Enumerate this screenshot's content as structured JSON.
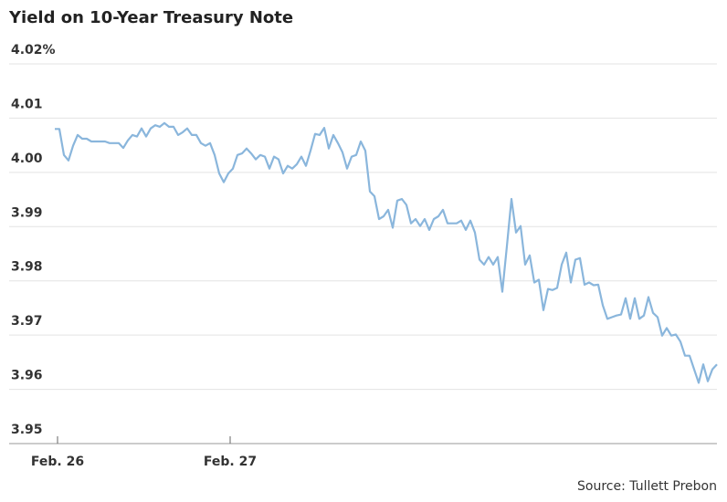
{
  "chart_data": {
    "type": "line",
    "title": "Yield on 10-Year Treasury Note",
    "source": "Source: Tullett Prebon",
    "series": [
      {
        "color": "#8ab6dc",
        "values": [
          4.008,
          4.008,
          4.0032,
          4.0022,
          4.0049,
          4.0069,
          4.0062,
          4.0062,
          4.0057,
          4.0057,
          4.0057,
          4.0057,
          4.0054,
          4.0054,
          4.0054,
          4.0045,
          4.0059,
          4.0069,
          4.0066,
          4.0081,
          4.0066,
          4.0081,
          4.0087,
          4.0084,
          4.0091,
          4.0084,
          4.0084,
          4.0069,
          4.0074,
          4.0081,
          4.0069,
          4.0069,
          4.0054,
          4.0049,
          4.0054,
          4.0032,
          3.9998,
          3.9982,
          3.9998,
          4.0007,
          4.0032,
          4.0035,
          4.0044,
          4.0035,
          4.0024,
          4.0032,
          4.0029,
          4.0007,
          4.0029,
          4.0024,
          3.9998,
          4.0012,
          4.0007,
          4.0015,
          4.0029,
          4.0012,
          4.004,
          4.0071,
          4.0069,
          4.0082,
          4.0044,
          4.0069,
          4.0054,
          4.0037,
          4.0007,
          4.0029,
          4.0032,
          4.0057,
          4.004,
          3.9965,
          3.9956,
          3.9914,
          3.9919,
          3.9931,
          3.9898,
          3.9948,
          3.9951,
          3.994,
          3.9906,
          3.9914,
          3.9901,
          3.9914,
          3.9894,
          3.9914,
          3.9919,
          3.9931,
          3.9906,
          3.9906,
          3.9906,
          3.9911,
          3.9894,
          3.9911,
          3.9889,
          3.9839,
          3.983,
          3.9844,
          3.983,
          3.9844,
          3.978,
          3.9864,
          3.9951,
          3.9889,
          3.9901,
          3.983,
          3.9847,
          3.9797,
          3.9802,
          3.9746,
          3.9785,
          3.9783,
          3.9787,
          3.983,
          3.9852,
          3.9797,
          3.9839,
          3.9842,
          3.9793,
          3.9797,
          3.9792,
          3.9793,
          3.9755,
          3.973,
          3.9733,
          3.9736,
          3.9738,
          3.9768,
          3.973,
          3.9768,
          3.973,
          3.9736,
          3.977,
          3.9741,
          3.9733,
          3.9699,
          3.9713,
          3.9699,
          3.9701,
          3.9688,
          3.9662,
          3.9662,
          3.9637,
          3.9612,
          3.9646,
          3.9615,
          3.9637,
          3.9646
        ]
      }
    ],
    "xlim": [
      0,
      145
    ],
    "xticks": [
      {
        "value": 0.6,
        "label": "Feb. 26"
      },
      {
        "value": 38.4,
        "label": "Feb. 27"
      }
    ],
    "ylim": [
      3.95,
      4.02
    ],
    "yticks": [
      3.95,
      3.96,
      3.97,
      3.98,
      3.99,
      {
        "value": 4.0,
        "label": "4.00"
      },
      4.01,
      {
        "value": 4.02,
        "label": "4.02%"
      }
    ],
    "grid": true
  }
}
